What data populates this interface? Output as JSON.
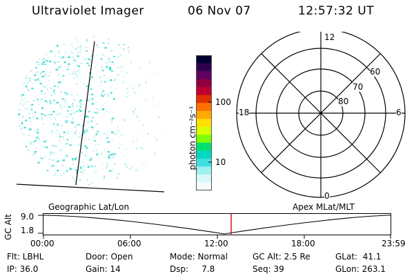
{
  "header": {
    "instrument": "Ultraviolet Imager",
    "date": "06 Nov 07",
    "time": "12:57:32 UT"
  },
  "colorbar": {
    "label": "photon cm⁻²s⁻¹",
    "ticks": [
      "100",
      "10"
    ],
    "colors": [
      "#000030",
      "#300050",
      "#600060",
      "#900040",
      "#c00030",
      "#e03000",
      "#ff7000",
      "#ffa800",
      "#ffe000",
      "#d8ff00",
      "#80ff00",
      "#00e070",
      "#00d8c0",
      "#40e0e0",
      "#a0f0f0",
      "#d8f8f8",
      "#f4fcfc"
    ]
  },
  "polar": {
    "mlt_labels": {
      "top": "12",
      "bottom": "0",
      "left": "18",
      "right": "6"
    },
    "lat_labels": [
      "60",
      "70",
      "80"
    ]
  },
  "timeline": {
    "left_label": "Geographic Lat/Lon",
    "right_label": "Apex MLat/MLT",
    "axis_label": "GC Alt",
    "y_ticks": [
      "9.0",
      "1.8"
    ],
    "x_ticks": [
      "00:00",
      "06:00",
      "12:00",
      "18:00",
      "23:59"
    ],
    "cursor_color": "#cc0000"
  },
  "status": {
    "filter": "Flt: LBHL",
    "ip": "IP: 36.0",
    "door": "Door: Open",
    "gain": "Gain: 14",
    "mode": "Mode: Normal",
    "dsp": "Dsp:     7.8",
    "gcalt": "GC Alt: 2.5 Re",
    "seq": "Seq: 39",
    "glat": "GLat:  41.1",
    "glon": "GLon: 263.1"
  }
}
